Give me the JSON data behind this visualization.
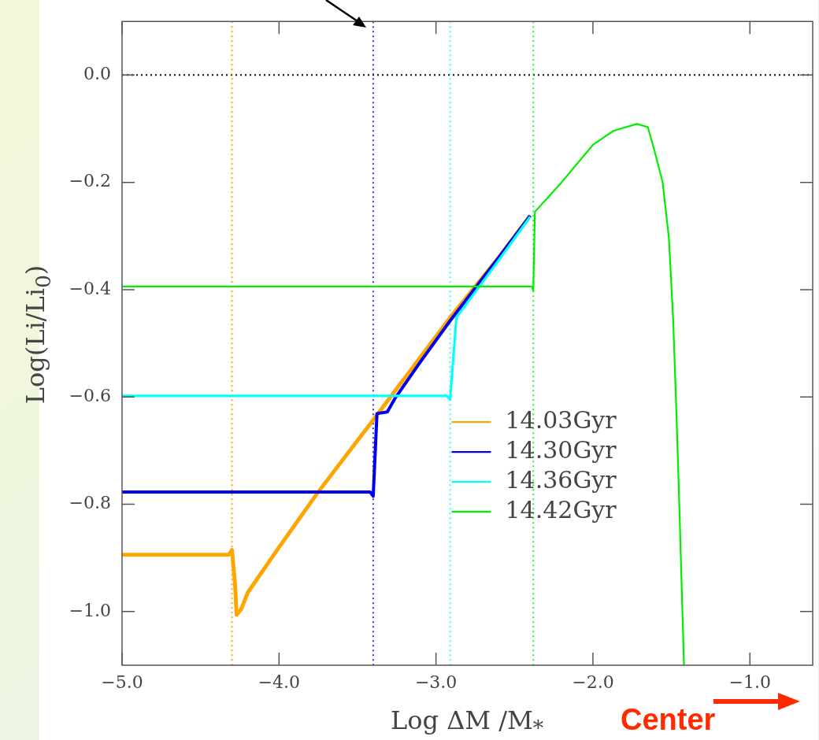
{
  "chart_data": {
    "type": "line",
    "xlabel": "Log ΔM /M$_{*}$",
    "ylabel": "Log(Li/Li$_{0}$)",
    "xlim": [
      -5.0,
      -0.6
    ],
    "xticks": [
      {
        "value": -5,
        "label": "−5.0"
      },
      {
        "value": -4,
        "label": "−4.0"
      },
      {
        "value": -3,
        "label": "−3.0"
      },
      {
        "value": -2,
        "label": "−2.0"
      },
      {
        "value": -1,
        "label": "−1.0"
      }
    ],
    "ylim": [
      -1.1,
      0.1
    ],
    "yticks": [
      {
        "value": -1,
        "label": "−1.0"
      },
      {
        "value": -0.8,
        "label": "−0.8"
      },
      {
        "value": -0.6,
        "label": "−0.6"
      },
      {
        "value": -0.4,
        "label": "−0.4"
      },
      {
        "value": -0.2,
        "label": "−0.2"
      },
      {
        "value": 0,
        "label": "0.0"
      }
    ],
    "grid": false,
    "legend": "center",
    "marker": "none",
    "line_style": "solid",
    "series": [
      {
        "name": "14.03Gyr",
        "color": "#ffa500",
        "x": [
          -5.0,
          -4.32,
          -4.3,
          -4.28,
          -4.27,
          -4.24,
          -4.2,
          -4.0,
          -3.75,
          -3.4,
          -3.2,
          -2.91,
          -2.6,
          -2.4
        ],
        "values": [
          -0.894,
          -0.894,
          -0.885,
          -0.95,
          -1.006,
          -0.995,
          -0.965,
          -0.88,
          -0.777,
          -0.643,
          -0.565,
          -0.452,
          -0.34,
          -0.262
        ]
      },
      {
        "name": "14.30Gyr",
        "color": "#0000ee",
        "x": [
          -5.0,
          -3.42,
          -3.4,
          -3.376,
          -3.31,
          -3.26,
          -3.1,
          -2.91,
          -2.6,
          -2.4
        ],
        "values": [
          -0.777,
          -0.777,
          -0.785,
          -0.631,
          -0.628,
          -0.602,
          -0.535,
          -0.458,
          -0.34,
          -0.262
        ]
      },
      {
        "name": "14.36Gyr",
        "color": "#00ffff",
        "x": [
          -5.0,
          -2.93,
          -2.91,
          -2.87,
          -2.6,
          -2.4
        ],
        "values": [
          -0.598,
          -0.598,
          -0.605,
          -0.452,
          -0.345,
          -0.264
        ]
      },
      {
        "name": "14.42Gyr",
        "color": "#00ee00",
        "x": [
          -5.0,
          -2.39,
          -2.38,
          -2.37,
          -2.2,
          -2.0,
          -1.87,
          -1.72,
          -1.65,
          -1.6,
          -1.556,
          -1.516,
          -1.489,
          -1.466,
          -1.45,
          -1.42
        ],
        "values": [
          -0.394,
          -0.394,
          -0.402,
          -0.255,
          -0.2,
          -0.13,
          -0.104,
          -0.091,
          -0.097,
          -0.15,
          -0.2,
          -0.304,
          -0.456,
          -0.648,
          -0.8,
          -1.1
        ]
      }
    ],
    "ref_lines": [
      {
        "axis": "y",
        "value": 0,
        "color": "#000000",
        "line_style": "dotted"
      },
      {
        "axis": "x",
        "value": -4.3,
        "color": "#ffa500",
        "line_style": "dotted"
      },
      {
        "axis": "x",
        "value": -3.4,
        "color": "#3333ff",
        "line_style": "dotted"
      },
      {
        "axis": "x",
        "value": -2.91,
        "color": "#33ffff",
        "line_style": "dotted"
      },
      {
        "axis": "x",
        "value": -2.38,
        "color": "#33ee33",
        "line_style": "dotted"
      }
    ],
    "annotations": [
      "Center"
    ]
  }
}
